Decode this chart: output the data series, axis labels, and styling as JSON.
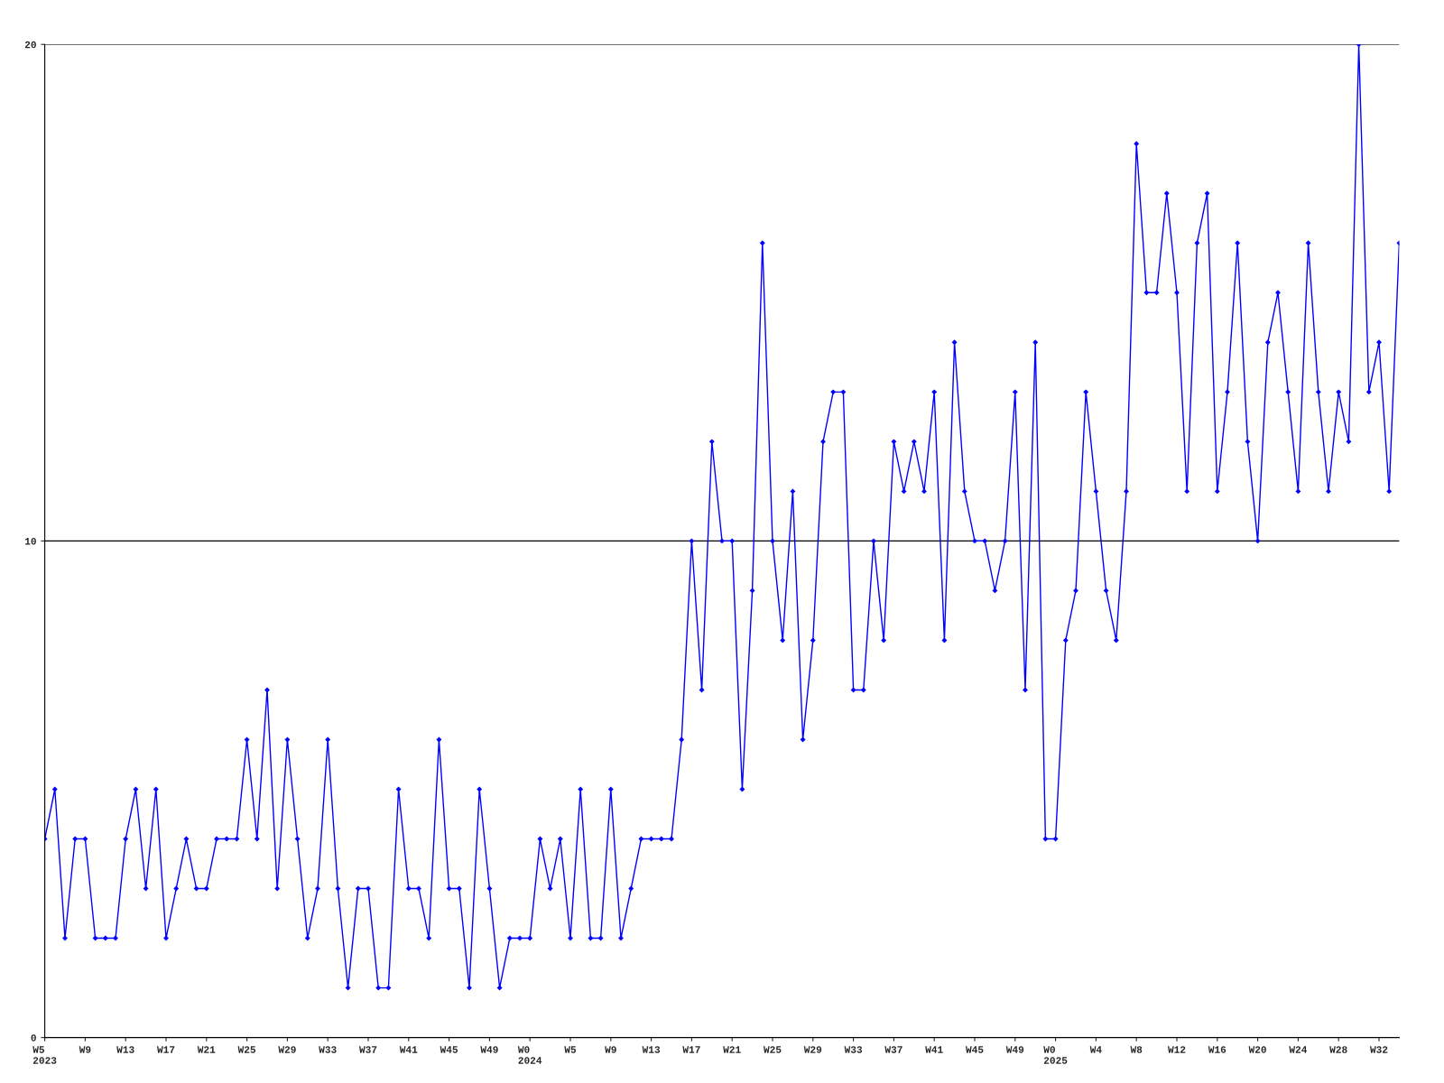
{
  "chart_data": {
    "type": "line",
    "categories": [
      "W5\n2023",
      null,
      null,
      null,
      "W9",
      null,
      null,
      null,
      "W13",
      null,
      null,
      null,
      "W17",
      null,
      null,
      null,
      "W21",
      null,
      null,
      null,
      "W25",
      null,
      null,
      null,
      "W29",
      null,
      null,
      null,
      "W33",
      null,
      null,
      null,
      "W37",
      null,
      null,
      null,
      "W41",
      null,
      null,
      null,
      "W45",
      null,
      null,
      null,
      "W49",
      null,
      null,
      null,
      "W0\n2024",
      null,
      null,
      null,
      "W5",
      null,
      null,
      null,
      "W9",
      null,
      null,
      null,
      "W13",
      null,
      null,
      null,
      "W17",
      null,
      null,
      null,
      "W21",
      null,
      null,
      null,
      "W25",
      null,
      null,
      null,
      "W29",
      null,
      null,
      null,
      "W33",
      null,
      null,
      null,
      "W37",
      null,
      null,
      null,
      "W41",
      null,
      null,
      null,
      "W45",
      null,
      null,
      null,
      "W49",
      null,
      null,
      null,
      "W0\n2025",
      null,
      null,
      null,
      "W4",
      null,
      null,
      null,
      "W8",
      null,
      null,
      null,
      "W12",
      null,
      null,
      null,
      "W16",
      null,
      null,
      null,
      "W20",
      null,
      null,
      null,
      "W24",
      null,
      null,
      null,
      "W28",
      null,
      null,
      null,
      "W32",
      null,
      null
    ],
    "series": [
      {
        "color": "#0000ff",
        "values": [
          4,
          5,
          2,
          4,
          4,
          2,
          2,
          2,
          4,
          5,
          3,
          5,
          2,
          3,
          4,
          3,
          3,
          4,
          4,
          4,
          6,
          4,
          7,
          3,
          6,
          4,
          2,
          3,
          6,
          3,
          1,
          3,
          3,
          1,
          1,
          5,
          3,
          3,
          2,
          6,
          3,
          3,
          1,
          5,
          3,
          1,
          2,
          2,
          2,
          4,
          3,
          4,
          2,
          5,
          2,
          2,
          5,
          2,
          3,
          4,
          4,
          4,
          4,
          6,
          10,
          7,
          12,
          10,
          10,
          5,
          9,
          16,
          10,
          8,
          11,
          6,
          8,
          12,
          13,
          13,
          7,
          7,
          10,
          8,
          12,
          11,
          12,
          11,
          13,
          8,
          14,
          11,
          10,
          10,
          9,
          10,
          13,
          7,
          14,
          4,
          4,
          8,
          9,
          13,
          11,
          9,
          8,
          11,
          18,
          15,
          15,
          17,
          15,
          11,
          16,
          17,
          11,
          13,
          16,
          12,
          10,
          14,
          15,
          13,
          11,
          16,
          13,
          11,
          13,
          12,
          20,
          13,
          14,
          11,
          16
        ]
      }
    ],
    "ylim": [
      0,
      20
    ],
    "yticks": [
      0,
      10,
      20
    ],
    "grid": "y",
    "marker": "diamond",
    "line_style": "solid",
    "legend": false
  }
}
